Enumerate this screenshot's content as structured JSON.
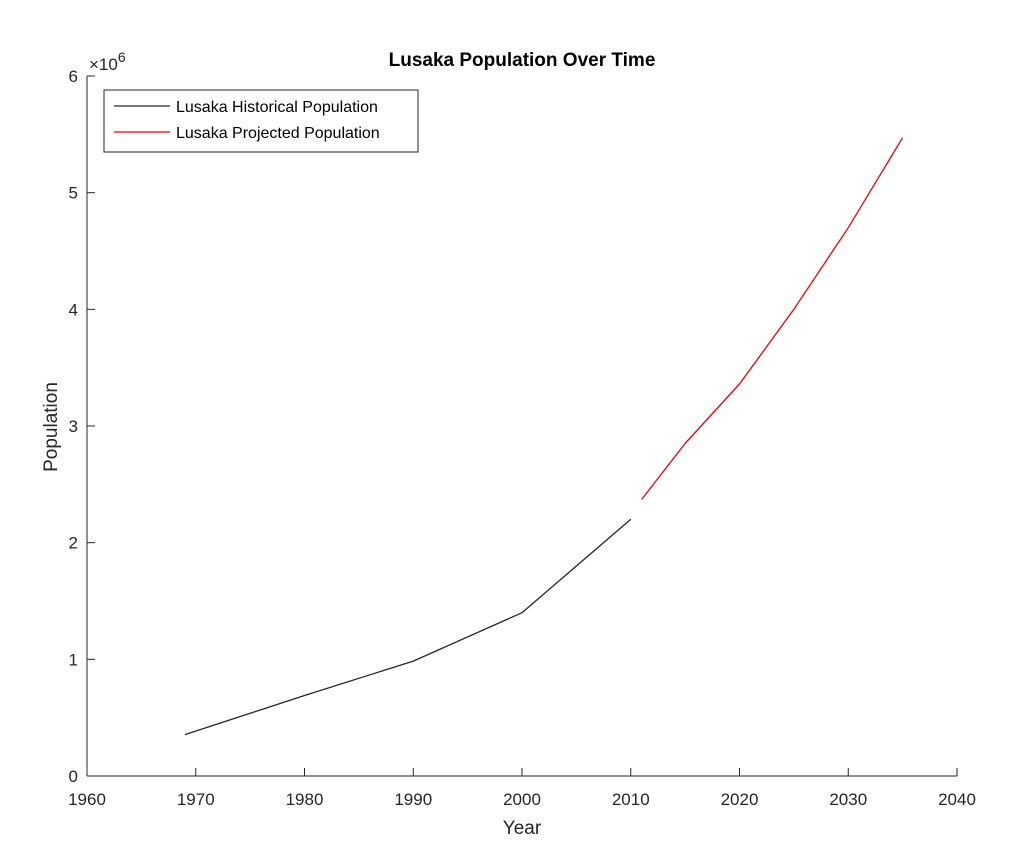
{
  "chart_data": {
    "type": "line",
    "title": "Lusaka Population Over Time",
    "xlabel": "Year",
    "ylabel": "Population",
    "xlim": [
      1960,
      2040
    ],
    "ylim": [
      0,
      6000000
    ],
    "xticks": [
      1960,
      1970,
      1980,
      1990,
      2000,
      2010,
      2020,
      2030,
      2040
    ],
    "yticks": [
      0,
      1000000,
      2000000,
      3000000,
      4000000,
      5000000,
      6000000
    ],
    "ytick_labels": [
      "0",
      "1",
      "2",
      "3",
      "4",
      "5",
      "6"
    ],
    "y_multiplier": {
      "base": "×10",
      "exponent": "6"
    },
    "grid": false,
    "legend_position": "top-left",
    "series": [
      {
        "name": "Lusaka Historical Population",
        "color": "#262626",
        "x": [
          1969,
          1980,
          1990,
          2000,
          2010
        ],
        "y": [
          355000,
          690000,
          985000,
          1400000,
          2200000
        ]
      },
      {
        "name": "Lusaka Projected Population",
        "color": "#e8000b",
        "x": [
          2011,
          2015,
          2020,
          2025,
          2030,
          2035
        ],
        "y": [
          2370000,
          2850000,
          3360000,
          4000000,
          4700000,
          5470000
        ]
      }
    ]
  }
}
